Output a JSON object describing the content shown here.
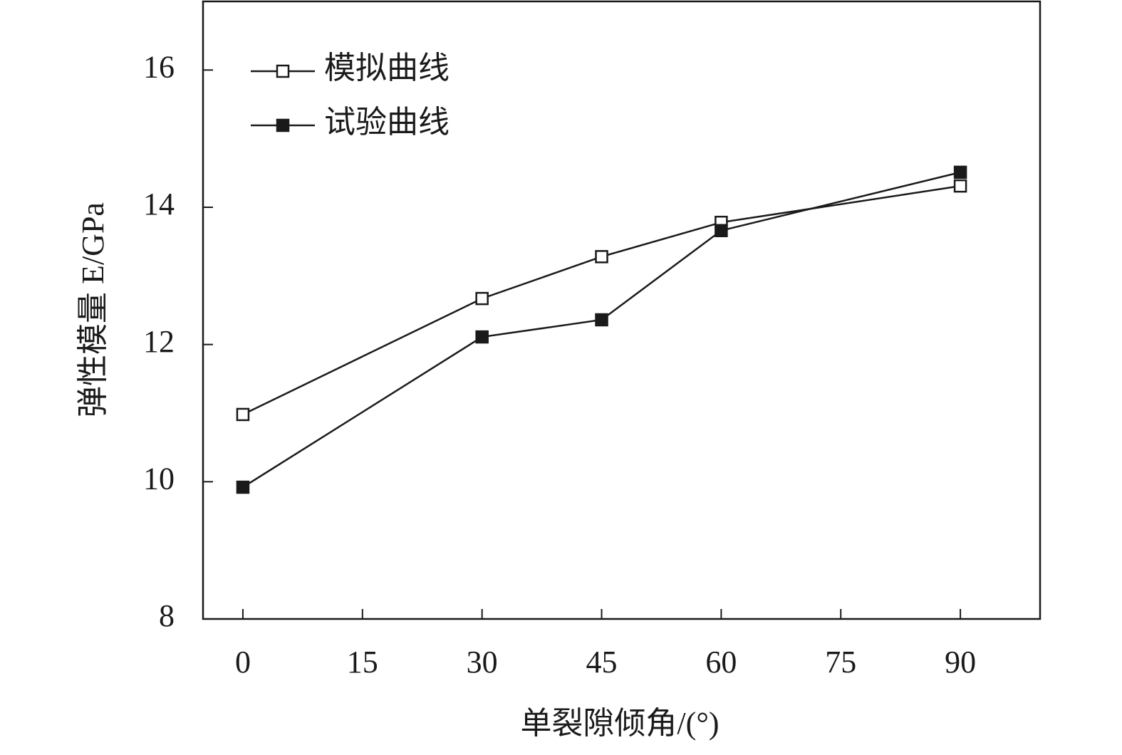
{
  "chart_data": {
    "type": "line",
    "x_label": "单裂隙倾角/(°)",
    "y_label": "弹性模量 E/GPa",
    "x": [
      0,
      30,
      45,
      60,
      90
    ],
    "series": [
      {
        "name": "模拟曲线",
        "color": "#1a1a1a",
        "marker": "open-square",
        "values": [
          10.98,
          12.67,
          13.28,
          13.78,
          14.31
        ]
      },
      {
        "name": "试验曲线",
        "color": "#1a1a1a",
        "marker": "filled-square",
        "values": [
          9.92,
          12.11,
          12.36,
          13.66,
          14.51
        ]
      }
    ],
    "xlim": [
      -5,
      100
    ],
    "xticks": [
      0,
      15,
      30,
      45,
      60,
      75,
      90
    ],
    "ylim": [
      8,
      17
    ],
    "yticks": [
      8,
      10,
      12,
      14,
      16
    ],
    "grid": false,
    "legend": "upper left"
  }
}
